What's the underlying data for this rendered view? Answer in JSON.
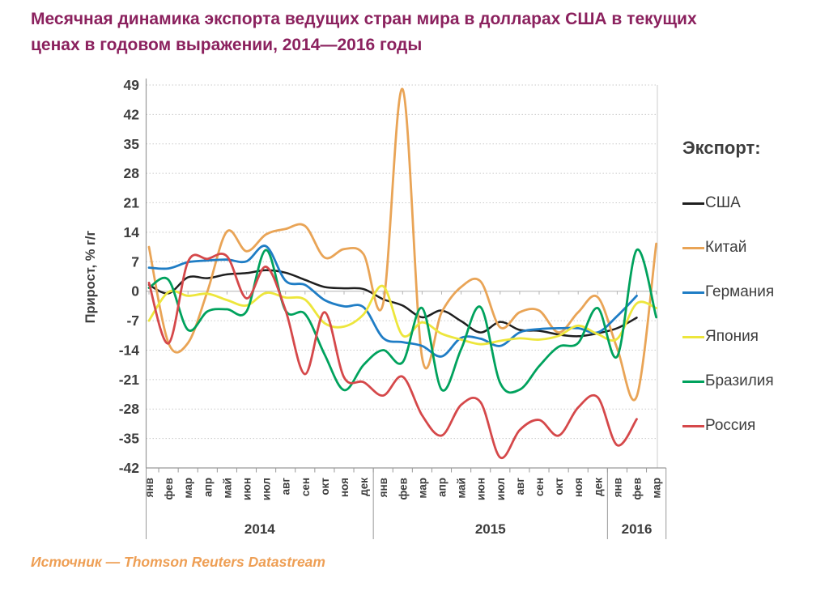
{
  "header": {
    "title_line1": "Месячная динамика экспорта ведущих стран мира в долларах США в текущих",
    "title_line2": "ценах в годовом выражении, 2014—2016 годы"
  },
  "footer": {
    "source": "Источник — Thomson Reuters Datastream"
  },
  "legend": {
    "title": "Экспорт:",
    "items": [
      {
        "id": "usa",
        "label": "США",
        "color": "#1f1f1f"
      },
      {
        "id": "china",
        "label": "Китай",
        "color": "#E9A456"
      },
      {
        "id": "germany",
        "label": "Германия",
        "color": "#1F7DC5"
      },
      {
        "id": "japan",
        "label": "Япония",
        "color": "#EDE63C"
      },
      {
        "id": "brazil",
        "label": "Бразилия",
        "color": "#00A25D"
      },
      {
        "id": "russia",
        "label": "Россия",
        "color": "#D5484A"
      }
    ]
  },
  "colors": {
    "title_text": "#8B215E",
    "axis_text": "#3d3d3d",
    "grid_dashed": "#c9c9c9",
    "axis_line": "#999999",
    "zero_line": "#b4b4b4",
    "source_text": "#EE9F55"
  },
  "chart_data": {
    "type": "line",
    "title": "Месячная динамика экспорта ведущих стран мира в долларах США в текущих ценах в годовом выражении, 2014—2016 годы",
    "xlabel": "",
    "ylabel": "Прирост, % г/г",
    "ylim": [
      -42,
      49
    ],
    "y_ticks": [
      49,
      42,
      35,
      28,
      21,
      14,
      7,
      0,
      -7,
      -14,
      -21,
      -28,
      -35,
      -42
    ],
    "grid": "horizontal dashed, solid ticked zero line",
    "legend_position": "right",
    "legend_title": "Экспорт:",
    "x_months": [
      "янв",
      "фев",
      "мар",
      "апр",
      "май",
      "июн",
      "июл",
      "авг",
      "сен",
      "окт",
      "ноя",
      "дек",
      "янв",
      "фев",
      "мар",
      "апр",
      "май",
      "июн",
      "июл",
      "авг",
      "сен",
      "окт",
      "ноя",
      "дек",
      "янв",
      "фев",
      "мар"
    ],
    "years": [
      {
        "label": "2014",
        "months": 12
      },
      {
        "label": "2015",
        "months": 12
      },
      {
        "label": "2016",
        "months": 3
      }
    ],
    "series": [
      {
        "id": "usa",
        "name": "США",
        "color": "#1f1f1f",
        "values": [
          1.5,
          -0.5,
          3.3,
          3.1,
          4.0,
          4.3,
          5.0,
          4.4,
          2.7,
          1.0,
          0.7,
          0.5,
          -1.9,
          -3.4,
          -6.2,
          -4.6,
          -7.1,
          -9.8,
          -7.3,
          -9.2,
          -9.4,
          -10.3,
          -10.7,
          -10.0,
          -8.8,
          -6.3,
          null
        ]
      },
      {
        "id": "china",
        "name": "Китай",
        "color": "#E9A456",
        "values": [
          10.5,
          -12.3,
          -12.3,
          0.0,
          14.2,
          9.5,
          13.5,
          14.8,
          15.5,
          8.0,
          10.0,
          8.8,
          -3.0,
          48.0,
          -15.8,
          -5.0,
          1.0,
          2.3,
          -8.6,
          -5.0,
          -4.6,
          -9.8,
          -5.0,
          -1.4,
          -13.6,
          -25.0,
          11.3
        ]
      },
      {
        "id": "germany",
        "name": "Германия",
        "color": "#1F7DC5",
        "values": [
          5.6,
          5.4,
          6.9,
          7.3,
          7.5,
          7.1,
          10.7,
          2.5,
          1.5,
          -2.1,
          -3.6,
          -3.8,
          -11.1,
          -12.1,
          -13.0,
          -15.5,
          -11.1,
          -11.3,
          -13.0,
          -9.8,
          -9.0,
          -8.8,
          -8.8,
          -9.8,
          -5.9,
          -1.1,
          null
        ]
      },
      {
        "id": "japan",
        "name": "Япония",
        "color": "#EDE63C",
        "values": [
          -7.0,
          -0.2,
          -1.1,
          -0.6,
          -2.1,
          -3.4,
          -0.4,
          -1.5,
          -2.0,
          -7.6,
          -8.4,
          -5.5,
          1.2,
          -10.5,
          -7.4,
          -10.1,
          -11.5,
          -12.6,
          -11.8,
          -11.2,
          -11.5,
          -10.6,
          -8.2,
          -10.2,
          -11.3,
          -2.9,
          -4.0
        ]
      },
      {
        "id": "brazil",
        "name": "Бразилия",
        "color": "#00A25D",
        "values": [
          0.8,
          2.7,
          -9.2,
          -4.8,
          -4.3,
          -4.8,
          9.8,
          -4.6,
          -5.4,
          -15.0,
          -23.5,
          -17.5,
          -14.0,
          -16.9,
          -4.0,
          -23.4,
          -13.8,
          -3.8,
          -21.8,
          -23.4,
          -17.8,
          -13.2,
          -12.3,
          -4.0,
          -15.5,
          9.8,
          -6.2
        ]
      },
      {
        "id": "russia",
        "name": "Россия",
        "color": "#D5484A",
        "values": [
          2.0,
          -12.4,
          7.0,
          7.7,
          8.3,
          -1.7,
          5.8,
          -4.5,
          -19.7,
          -5.0,
          -20.5,
          -21.6,
          -24.8,
          -20.3,
          -29.5,
          -34.3,
          -27.0,
          -26.4,
          -39.5,
          -33.0,
          -30.6,
          -34.3,
          -27.6,
          -25.2,
          -36.6,
          -30.4,
          null
        ]
      }
    ]
  }
}
